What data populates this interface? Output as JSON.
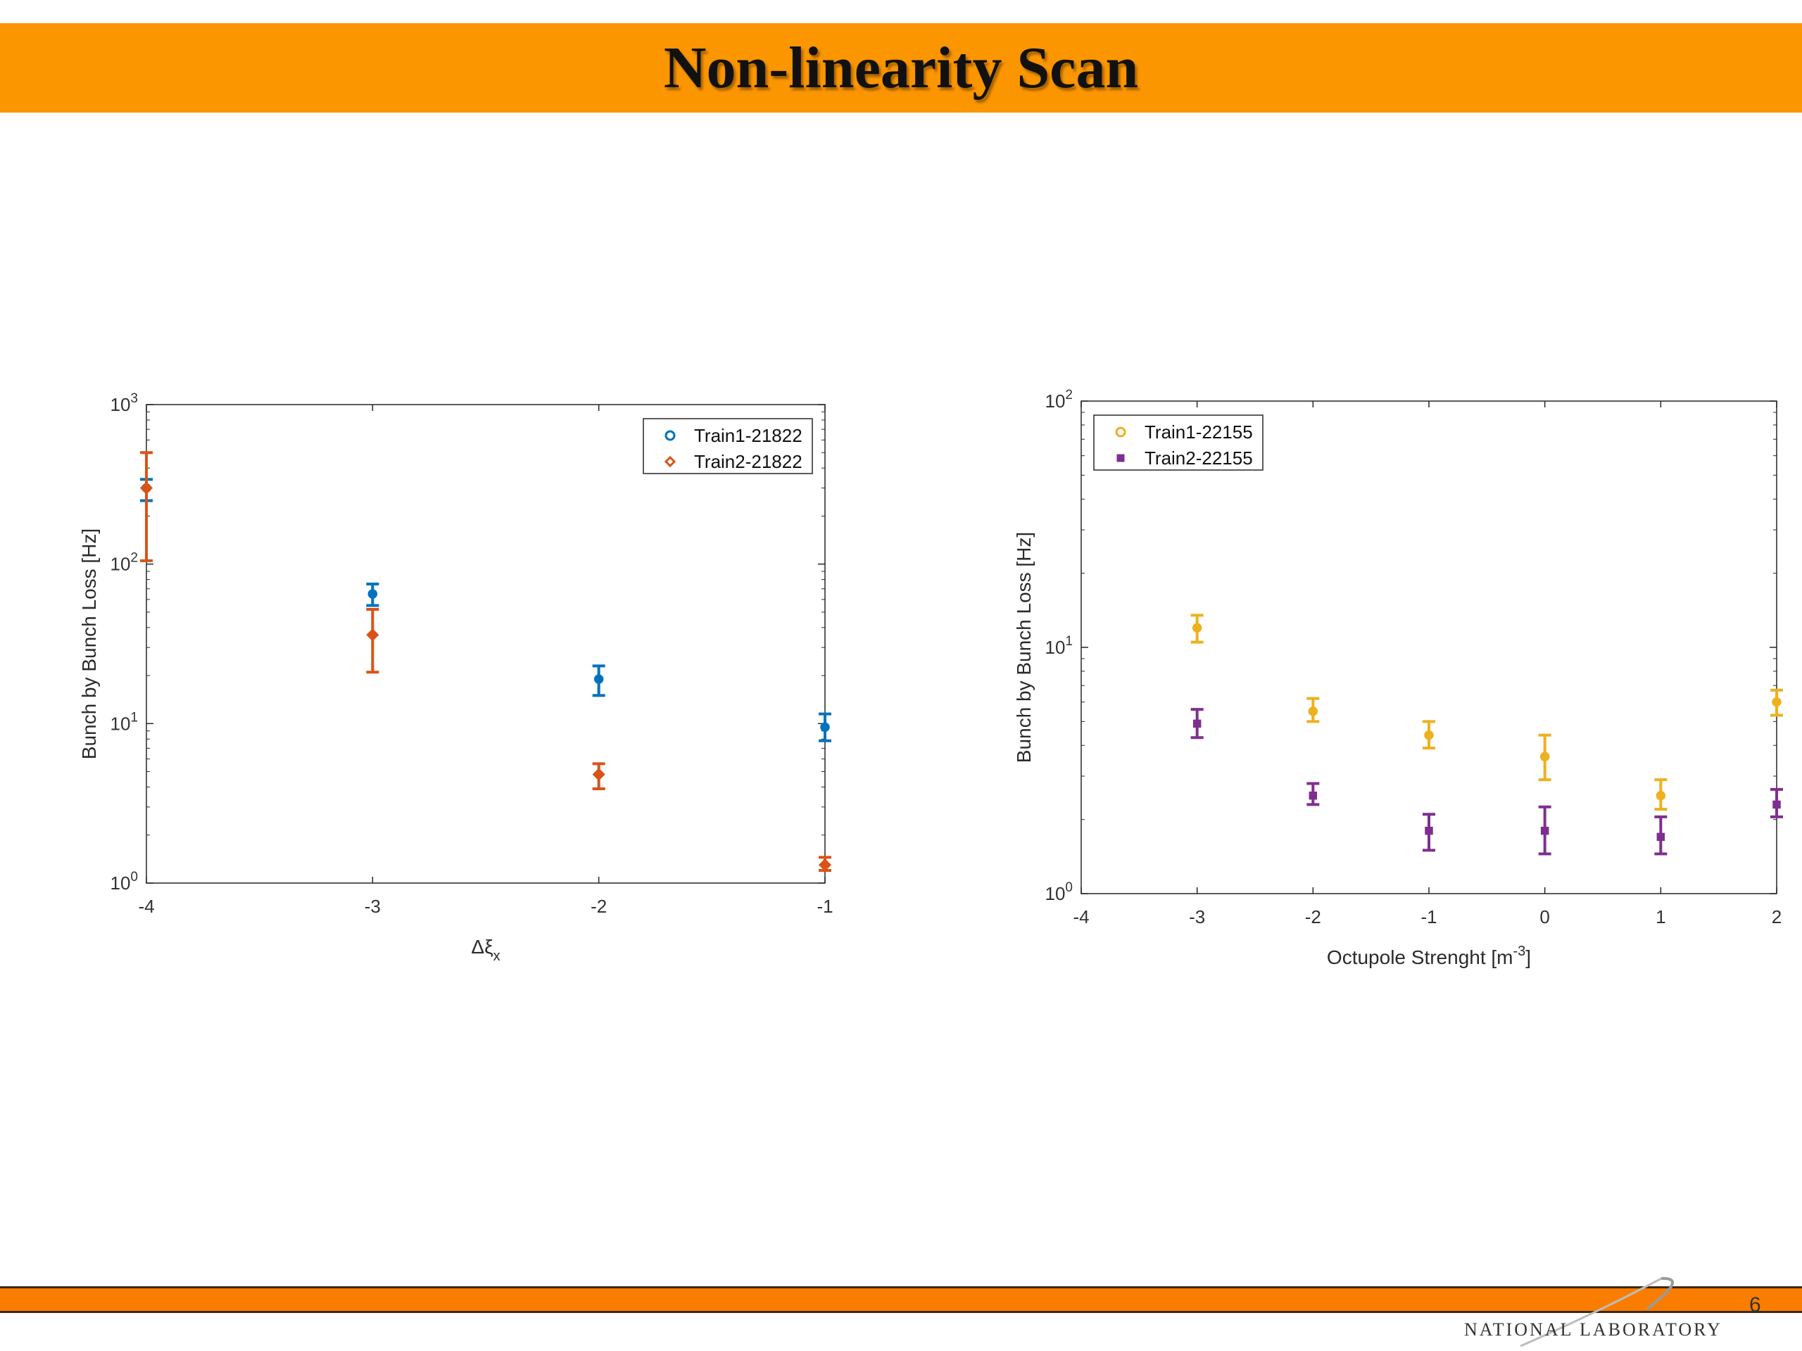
{
  "slide": {
    "title": "Non-linearity Scan",
    "logo_text": "NATIONAL LABORATORY",
    "page_number": "6"
  },
  "colors": {
    "title_bar": "#fb9500",
    "bottom_bar": "#fb7d00"
  },
  "chart_data": [
    {
      "type": "scatter",
      "title": "",
      "xlabel": "Δξ",
      "xlabel_sub": "x",
      "ylabel": "Bunch by Bunch Loss [Hz]",
      "yscale": "log",
      "xlim": [
        -4,
        -1
      ],
      "ylim": [
        1,
        1000
      ],
      "x_ticks": [
        -4,
        -3,
        -2,
        -1
      ],
      "y_ticks": [
        1,
        10,
        100,
        1000
      ],
      "legend_position": "top-right",
      "series": [
        {
          "name": "Train1-21822",
          "color": "#0072bd",
          "marker": "circle",
          "points": [
            {
              "x": -4,
              "y": 300,
              "lo": 250,
              "hi": 340
            },
            {
              "x": -3,
              "y": 65,
              "lo": 55,
              "hi": 75
            },
            {
              "x": -2,
              "y": 19,
              "lo": 15,
              "hi": 23
            },
            {
              "x": -1,
              "y": 9.5,
              "lo": 7.8,
              "hi": 11.5
            }
          ]
        },
        {
          "name": "Train2-21822",
          "color": "#d95319",
          "marker": "diamond",
          "points": [
            {
              "x": -4,
              "y": 300,
              "lo": 105,
              "hi": 500
            },
            {
              "x": -3,
              "y": 36,
              "lo": 21,
              "hi": 52
            },
            {
              "x": -2,
              "y": 4.8,
              "lo": 3.9,
              "hi": 5.6
            },
            {
              "x": -1,
              "y": 1.3,
              "lo": 1.2,
              "hi": 1.45
            }
          ]
        }
      ]
    },
    {
      "type": "scatter",
      "title": "",
      "xlabel": "Octupole Strenght [m",
      "xlabel_sup": "-3",
      "xlabel_end": "]",
      "ylabel": "Bunch by Bunch Loss [Hz]",
      "yscale": "log",
      "xlim": [
        -4,
        2
      ],
      "ylim": [
        1,
        100
      ],
      "x_ticks": [
        -4,
        -3,
        -2,
        -1,
        0,
        1,
        2
      ],
      "y_ticks": [
        1,
        10,
        100
      ],
      "legend_position": "top-left",
      "series": [
        {
          "name": "Train1-22155",
          "color": "#edb120",
          "marker": "circle",
          "points": [
            {
              "x": -3,
              "y": 12,
              "lo": 10.5,
              "hi": 13.5
            },
            {
              "x": -2,
              "y": 5.5,
              "lo": 5.0,
              "hi": 6.2
            },
            {
              "x": -1,
              "y": 4.4,
              "lo": 3.9,
              "hi": 5.0
            },
            {
              "x": 0,
              "y": 3.6,
              "lo": 2.9,
              "hi": 4.4
            },
            {
              "x": 1,
              "y": 2.5,
              "lo": 2.2,
              "hi": 2.9
            },
            {
              "x": 2,
              "y": 6.0,
              "lo": 5.3,
              "hi": 6.7
            }
          ]
        },
        {
          "name": "Train2-22155",
          "color": "#7e2f8e",
          "marker": "square",
          "points": [
            {
              "x": -3,
              "y": 4.9,
              "lo": 4.3,
              "hi": 5.6
            },
            {
              "x": -2,
              "y": 2.5,
              "lo": 2.3,
              "hi": 2.8
            },
            {
              "x": -1,
              "y": 1.8,
              "lo": 1.5,
              "hi": 2.1
            },
            {
              "x": 0,
              "y": 1.8,
              "lo": 1.45,
              "hi": 2.25
            },
            {
              "x": 1,
              "y": 1.7,
              "lo": 1.45,
              "hi": 2.05
            },
            {
              "x": 2,
              "y": 2.3,
              "lo": 2.05,
              "hi": 2.65
            }
          ]
        }
      ]
    }
  ]
}
